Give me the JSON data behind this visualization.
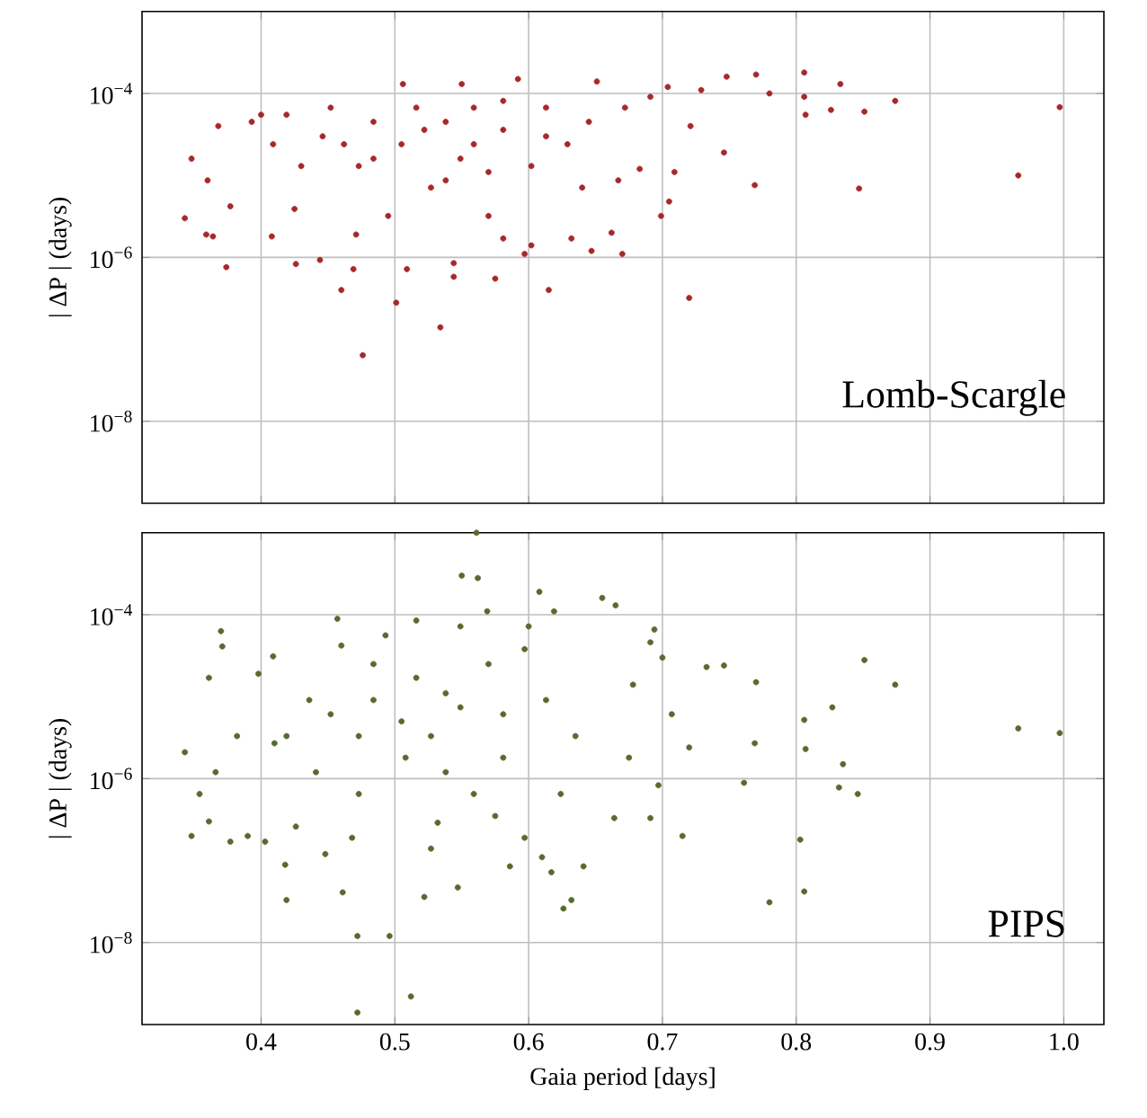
{
  "chart_data": [
    {
      "type": "scatter",
      "ylabel": "| ΔP |  (days)",
      "annotations": [
        "Lomb-Scargle"
      ],
      "log": "y",
      "grid": true,
      "marker": "circle",
      "tick_labels": "y",
      "xlim": [
        0.311,
        1.03
      ],
      "ylim": [
        1e-09,
        0.001
      ],
      "xticks": [
        {
          "value": 0.4,
          "label": null
        },
        {
          "value": 0.5,
          "label": null
        },
        {
          "value": 0.6,
          "label": null
        },
        {
          "value": 0.7,
          "label": null
        },
        {
          "value": 0.8,
          "label": null
        },
        {
          "value": 0.9,
          "label": null
        },
        {
          "value": 1.0,
          "label": null
        }
      ],
      "yticks": [
        {
          "value": 1e-08,
          "label": "10$^{−8}$"
        },
        {
          "value": 1e-06,
          "label": "10$^{−6}$"
        },
        {
          "value": 0.0001,
          "label": "10$^{−4}$"
        }
      ],
      "series": [
        {
          "color": "#a82828",
          "x": [
            0.343,
            0.348,
            0.359,
            0.364,
            0.374,
            0.36,
            0.368,
            0.377,
            0.393,
            0.4,
            0.408,
            0.426,
            0.419,
            0.425,
            0.444,
            0.452,
            0.46,
            0.469,
            0.476,
            0.462,
            0.473,
            0.471,
            0.484,
            0.495,
            0.501,
            0.506,
            0.509,
            0.505,
            0.522,
            0.534,
            0.544,
            0.544,
            0.55,
            0.538,
            0.549,
            0.559,
            0.57,
            0.575,
            0.581,
            0.592,
            0.597,
            0.581,
            0.602,
            0.615,
            0.602,
            0.613,
            0.629,
            0.632,
            0.647,
            0.651,
            0.64,
            0.662,
            0.67,
            0.667,
            0.672,
            0.683,
            0.691,
            0.699,
            0.704,
            0.705,
            0.709,
            0.72,
            0.721,
            0.729,
            0.746,
            0.748,
            0.769,
            0.77,
            0.78,
            0.806,
            0.807,
            0.806,
            0.826,
            0.833,
            0.847,
            0.851,
            0.874,
            0.966,
            0.997,
            0.446,
            0.484,
            0.516,
            0.538,
            0.559,
            0.581,
            0.613,
            0.645,
            0.527,
            0.57,
            0.43,
            0.409
          ],
          "values": [
            3e-06,
            1.6e-05,
            1.9e-06,
            1.8e-06,
            7.6e-07,
            8.7e-06,
            4e-05,
            4.2e-06,
            4.5e-05,
            5.5e-05,
            1.8e-06,
            8.3e-07,
            5.5e-05,
            3.9e-06,
            9.3e-07,
            6.7e-05,
            4e-07,
            7.2e-07,
            6.4e-08,
            2.4e-05,
            1.3e-05,
            1.9e-06,
            4.5e-05,
            3.2e-06,
            2.8e-07,
            0.00013,
            7.2e-07,
            2.4e-05,
            3.6e-05,
            1.4e-07,
            8.5e-07,
            5.8e-07,
            0.00013,
            8.7e-06,
            1.6e-05,
            6.7e-05,
            3.2e-06,
            5.5e-07,
            1.7e-06,
            0.00015,
            1.1e-06,
            3.6e-05,
            1.3e-05,
            4e-07,
            1.4e-06,
            6.7e-05,
            2.4e-05,
            1.7e-06,
            1.2e-06,
            0.00014,
            7.1e-06,
            2e-06,
            1.1e-06,
            8.7e-06,
            6.7e-05,
            1.2e-05,
            9.1e-05,
            3.2e-06,
            0.00012,
            4.8e-06,
            1.1e-05,
            3.2e-07,
            4e-05,
            0.00011,
            1.9e-05,
            0.00016,
            7.6e-06,
            0.00017,
            0.0001,
            0.00018,
            5.5e-05,
            9.1e-05,
            6.3e-05,
            0.00013,
            6.9e-06,
            6e-05,
            8.1e-05,
            1e-05,
            6.8e-05,
            3e-05,
            1.6e-05,
            6.7e-05,
            4.5e-05,
            2.4e-05,
            8.1e-05,
            3e-05,
            4.5e-05,
            7.1e-06,
            1.1e-05,
            1.3e-05,
            2.4e-05
          ]
        }
      ]
    },
    {
      "type": "scatter",
      "xlabel": "Gaia period [days]",
      "ylabel": "| ΔP |  (days)",
      "annotations": [
        "PIPS"
      ],
      "log": "y",
      "grid": true,
      "marker": "circle",
      "xlim": [
        0.311,
        1.03
      ],
      "ylim": [
        1e-09,
        0.001
      ],
      "xticks": [
        0.4,
        0.5,
        0.6,
        0.7,
        0.8,
        0.9,
        {
          "value": 1.0,
          "label": "1.0"
        }
      ],
      "yticks": [
        {
          "value": 1e-08,
          "label": "10$^{−8}$"
        },
        {
          "value": 1e-06,
          "label": "10$^{−6}$"
        },
        {
          "value": 0.0001,
          "label": "10$^{−4}$"
        }
      ],
      "series": [
        {
          "color": "#556b2f",
          "x": [
            0.343,
            0.348,
            0.354,
            0.361,
            0.361,
            0.37,
            0.371,
            0.366,
            0.377,
            0.382,
            0.39,
            0.398,
            0.403,
            0.409,
            0.41,
            0.419,
            0.418,
            0.426,
            0.441,
            0.448,
            0.457,
            0.46,
            0.461,
            0.472,
            0.472,
            0.468,
            0.473,
            0.484,
            0.493,
            0.496,
            0.512,
            0.508,
            0.516,
            0.522,
            0.527,
            0.532,
            0.547,
            0.55,
            0.562,
            0.561,
            0.549,
            0.569,
            0.549,
            0.527,
            0.559,
            0.575,
            0.586,
            0.597,
            0.597,
            0.6,
            0.608,
            0.61,
            0.617,
            0.619,
            0.626,
            0.632,
            0.641,
            0.655,
            0.665,
            0.635,
            0.613,
            0.581,
            0.538,
            0.505,
            0.452,
            0.419,
            0.664,
            0.675,
            0.691,
            0.694,
            0.691,
            0.7,
            0.697,
            0.678,
            0.715,
            0.72,
            0.707,
            0.733,
            0.746,
            0.761,
            0.769,
            0.77,
            0.78,
            0.803,
            0.806,
            0.806,
            0.807,
            0.827,
            0.832,
            0.835,
            0.846,
            0.851,
            0.874,
            0.966,
            0.997,
            0.484,
            0.516,
            0.57,
            0.538,
            0.581,
            0.624,
            0.473,
            0.436
          ],
          "values": [
            2.1e-06,
            2e-07,
            6.5e-07,
            1.7e-05,
            3e-07,
            6.3e-05,
            4.1e-05,
            1.2e-06,
            1.7e-07,
            3.3e-06,
            2e-07,
            1.9e-05,
            1.7e-07,
            3.1e-05,
            2.7e-06,
            3.3e-08,
            8.9e-08,
            2.6e-07,
            1.2e-06,
            1.2e-07,
            8.9e-05,
            4.2e-05,
            4.1e-08,
            1.2e-08,
            1.4e-09,
            1.9e-07,
            3.3e-06,
            9.1e-06,
            5.6e-05,
            1.2e-08,
            2.2e-09,
            1.8e-06,
            8.5e-05,
            3.6e-08,
            1.4e-07,
            2.9e-07,
            4.7e-08,
            0.0003,
            0.00028,
            0.001,
            7.2e-05,
            0.00011,
            7.4e-06,
            3.3e-06,
            6.5e-07,
            3.5e-07,
            8.5e-08,
            1.9e-07,
            3.8e-05,
            7.2e-05,
            0.00019,
            1.1e-07,
            7.2e-08,
            0.00011,
            2.6e-08,
            3.3e-08,
            8.5e-08,
            0.00016,
            0.00013,
            3.3e-06,
            9.1e-06,
            6.1e-06,
            1.1e-05,
            5e-06,
            6.1e-06,
            3.3e-06,
            3.3e-07,
            1.8e-06,
            3.3e-07,
            6.6e-05,
            4.6e-05,
            3e-05,
            8.3e-07,
            1.4e-05,
            2e-07,
            2.4e-06,
            6.1e-06,
            2.3e-05,
            2.4e-05,
            8.9e-07,
            2.7e-06,
            1.5e-05,
            3.1e-08,
            1.8e-07,
            4.2e-08,
            5.2e-06,
            2.3e-06,
            7.4e-06,
            7.8e-07,
            1.5e-06,
            6.5e-07,
            2.8e-05,
            1.4e-05,
            4.1e-06,
            3.6e-06,
            2.5e-05,
            1.7e-05,
            2.5e-05,
            1.2e-06,
            1.8e-06,
            6.5e-07,
            6.5e-07,
            9.1e-06
          ]
        }
      ]
    }
  ]
}
